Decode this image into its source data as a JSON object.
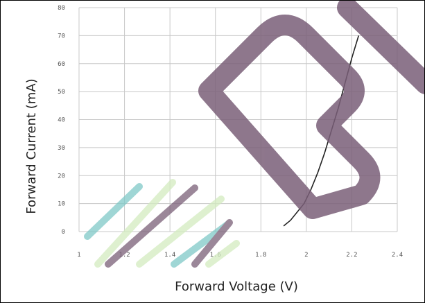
{
  "chart_data": {
    "type": "line",
    "title": "",
    "xlabel": "Forward Voltage (V)",
    "ylabel": "Forward Current (mA)",
    "xlim": [
      1,
      2.4
    ],
    "ylim": [
      0,
      80
    ],
    "x_ticks": [
      "1",
      "1.2",
      "1.4",
      "1.6",
      "1.8",
      "2",
      "2.2",
      "2.4"
    ],
    "y_ticks": [
      "80",
      "70",
      "60",
      "50",
      "40",
      "30",
      "20",
      "10",
      "0"
    ],
    "grid": true,
    "series": [
      {
        "color": "#222222",
        "x": [
          1.9,
          1.93,
          1.96,
          1.99,
          2.02,
          2.05,
          2.08,
          2.11,
          2.14,
          2.17,
          2.2,
          2.23
        ],
        "y": [
          2,
          4,
          7,
          10,
          15,
          21,
          28,
          36,
          44,
          53,
          62,
          70
        ]
      }
    ],
    "colors": {
      "grid": "#c8c8c8",
      "axis": "#aaaaaa",
      "watermark": "#7a5f78"
    }
  }
}
